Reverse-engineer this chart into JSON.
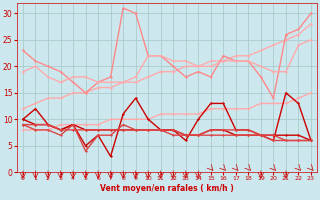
{
  "bg_color": "#cce8ee",
  "grid_color": "#aacccc",
  "x_label": "Vent moyen/en rafales ( km/h )",
  "x_ticks": [
    0,
    1,
    2,
    3,
    4,
    5,
    6,
    7,
    8,
    9,
    10,
    11,
    12,
    13,
    14,
    15,
    16,
    17,
    18,
    19,
    20,
    21,
    22,
    23
  ],
  "ylim": [
    0,
    32
  ],
  "yticks": [
    0,
    5,
    10,
    15,
    20,
    25,
    30
  ],
  "series": [
    {
      "comment": "light pink trending line 1 - upper, going from ~12 to ~28",
      "color": "#ffaaaa",
      "lw": 1.0,
      "marker": "D",
      "ms": 1.5,
      "y": [
        12,
        13,
        14,
        14,
        15,
        15,
        16,
        16,
        17,
        17,
        18,
        19,
        19,
        20,
        20,
        21,
        21,
        22,
        22,
        23,
        24,
        25,
        26,
        28
      ]
    },
    {
      "comment": "light pink trending line 2 - lower, going from ~8 to ~15",
      "color": "#ffaaaa",
      "lw": 1.0,
      "marker": "D",
      "ms": 1.5,
      "y": [
        8,
        8,
        8,
        9,
        9,
        9,
        9,
        10,
        10,
        10,
        10,
        11,
        11,
        11,
        11,
        12,
        12,
        12,
        12,
        13,
        13,
        13,
        14,
        15
      ]
    },
    {
      "comment": "medium pink wavy - upper group, starts ~23 dips and rises",
      "color": "#ff8888",
      "lw": 1.0,
      "marker": "D",
      "ms": 1.5,
      "y": [
        23,
        21,
        20,
        19,
        17,
        15,
        17,
        18,
        31,
        30,
        22,
        22,
        20,
        18,
        19,
        18,
        22,
        21,
        21,
        18,
        14,
        26,
        27,
        30
      ]
    },
    {
      "comment": "medium pink wavy - middle group starts ~19",
      "color": "#ffaaaa",
      "lw": 1.0,
      "marker": "D",
      "ms": 1.5,
      "y": [
        19,
        20,
        18,
        17,
        18,
        18,
        17,
        17,
        17,
        18,
        22,
        22,
        21,
        21,
        20,
        20,
        21,
        21,
        21,
        20,
        19,
        19,
        24,
        25
      ]
    },
    {
      "comment": "dark red volatile line - main data",
      "color": "#cc0000",
      "lw": 1.0,
      "marker": "D",
      "ms": 1.5,
      "y": [
        10,
        12,
        9,
        8,
        9,
        5,
        7,
        3,
        11,
        14,
        10,
        8,
        8,
        6,
        10,
        13,
        13,
        8,
        8,
        7,
        6,
        15,
        13,
        6
      ]
    },
    {
      "comment": "dark red slightly declining line",
      "color": "#cc0000",
      "lw": 1.0,
      "marker": "D",
      "ms": 1.5,
      "y": [
        10,
        9,
        9,
        8,
        9,
        8,
        8,
        8,
        8,
        8,
        8,
        8,
        8,
        7,
        7,
        8,
        8,
        7,
        7,
        7,
        7,
        7,
        7,
        6
      ]
    },
    {
      "comment": "dark red lower declining",
      "color": "#dd4444",
      "lw": 1.0,
      "marker": "D",
      "ms": 1.5,
      "y": [
        9,
        8,
        8,
        7,
        9,
        4,
        7,
        7,
        9,
        8,
        8,
        8,
        8,
        7,
        7,
        8,
        8,
        8,
        8,
        7,
        7,
        6,
        6,
        6
      ]
    },
    {
      "comment": "medium red slightly declining",
      "color": "#dd4444",
      "lw": 1.0,
      "marker": "D",
      "ms": 1.5,
      "y": [
        9,
        9,
        9,
        8,
        8,
        8,
        8,
        8,
        8,
        8,
        8,
        8,
        7,
        7,
        7,
        7,
        7,
        7,
        7,
        7,
        6,
        6,
        6,
        6
      ]
    }
  ],
  "arrow_dirs": [
    0,
    0,
    0,
    0,
    0,
    0,
    0,
    0,
    0,
    0,
    0,
    0,
    0,
    0,
    0,
    135,
    135,
    135,
    135,
    0,
    135,
    0,
    135,
    135
  ]
}
